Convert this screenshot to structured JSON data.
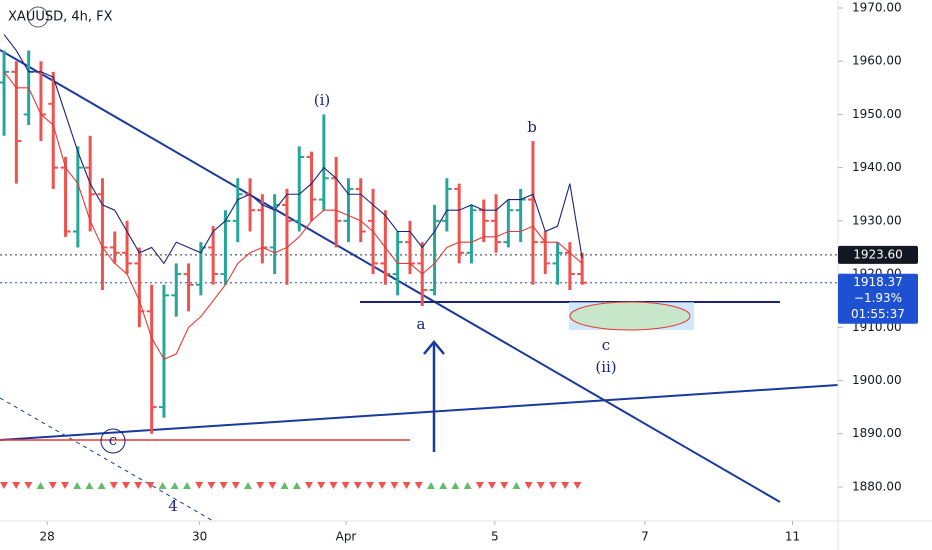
{
  "chart_data": {
    "type": "ohlc",
    "title": "XAUUSD, 4h, FX",
    "up_color": "#26a69a",
    "down_color": "#ef5350",
    "ohlc": [
      [
        1956,
        1962,
        1946,
        1958
      ],
      [
        1958,
        1960,
        1937,
        1945
      ],
      [
        1950,
        1962,
        1948,
        1958
      ],
      [
        1958,
        1960,
        1945,
        1950
      ],
      [
        1952,
        1958,
        1936,
        1940
      ],
      [
        1940,
        1942,
        1927,
        1928
      ],
      [
        1928,
        1944,
        1925,
        1940
      ],
      [
        1940,
        1946,
        1928,
        1935
      ],
      [
        1935,
        1938,
        1917,
        1925
      ],
      [
        1925,
        1928,
        1922,
        1924
      ],
      [
        1924,
        1930,
        1920,
        1922
      ],
      [
        1922,
        1925,
        1910,
        1913
      ],
      [
        1913,
        1918,
        1890,
        1895
      ],
      [
        1895,
        1918,
        1893,
        1916
      ],
      [
        1916,
        1922,
        1912,
        1920
      ],
      [
        1920,
        1922,
        1913,
        1918
      ],
      [
        1918,
        1926,
        1916,
        1925
      ],
      [
        1925,
        1929,
        1918,
        1920
      ],
      [
        1920,
        1932,
        1918,
        1930
      ],
      [
        1930,
        1938,
        1926,
        1935
      ],
      [
        1935,
        1938,
        1928,
        1932
      ],
      [
        1932,
        1935,
        1922,
        1925
      ],
      [
        1925,
        1935,
        1920,
        1933
      ],
      [
        1933,
        1936,
        1918,
        1930
      ],
      [
        1930,
        1944,
        1928,
        1942
      ],
      [
        1942,
        1943,
        1930,
        1934
      ],
      [
        1934,
        1950,
        1932,
        1938
      ],
      [
        1938,
        1942,
        1925,
        1930
      ],
      [
        1930,
        1938,
        1926,
        1936
      ],
      [
        1936,
        1938,
        1926,
        1928
      ],
      [
        1930,
        1936,
        1920,
        1922
      ],
      [
        1922,
        1932,
        1918,
        1920
      ],
      [
        1920,
        1928,
        1916,
        1926
      ],
      [
        1926,
        1930,
        1920,
        1922
      ],
      [
        1922,
        1926,
        1914,
        1917
      ],
      [
        1917,
        1933,
        1916,
        1930
      ],
      [
        1930,
        1938,
        1928,
        1936
      ],
      [
        1936,
        1937,
        1922,
        1924
      ],
      [
        1924,
        1933,
        1922,
        1932
      ],
      [
        1932,
        1934,
        1926,
        1930
      ],
      [
        1930,
        1935,
        1924,
        1926
      ],
      [
        1926,
        1934,
        1925,
        1932
      ],
      [
        1932,
        1936,
        1926,
        1934
      ],
      [
        1934,
        1945,
        1918,
        1926
      ],
      [
        1926,
        1928,
        1920,
        1922
      ],
      [
        1922,
        1926,
        1918,
        1924
      ],
      [
        1924,
        1926,
        1917,
        1920
      ],
      [
        1920,
        1924,
        1918,
        1918.37
      ]
    ],
    "series": [
      {
        "color": "#1a237e",
        "values": [
          1965,
          1962,
          1958,
          1958,
          1957,
          1950,
          1943,
          1937,
          1933,
          1932,
          1928,
          1924,
          1925,
          1922,
          1926,
          1925,
          1924,
          1928,
          1930,
          1934,
          1935,
          1933,
          1932,
          1935,
          1935,
          1937,
          1940,
          1938,
          1935,
          1935,
          1933,
          1931,
          1928,
          1928,
          1925,
          1928,
          1932,
          1932,
          1933,
          1932,
          1932,
          1934,
          1934,
          1935,
          1928,
          1929,
          1937,
          1923
        ]
      },
      {
        "color": "#e53935",
        "values": [
          1958,
          1955,
          1955,
          1950,
          1948,
          1940,
          1937,
          1930,
          1925,
          1922,
          1920,
          1915,
          1908,
          1904,
          1905,
          1910,
          1912,
          1915,
          1918,
          1922,
          1924,
          1925,
          1924,
          1925,
          1927,
          1930,
          1932,
          1932,
          1931,
          1930,
          1928,
          1925,
          1922,
          1922,
          1920,
          1922,
          1925,
          1926,
          1926,
          1927,
          1927,
          1928,
          1928,
          1929,
          1926,
          1926,
          1924,
          1922
        ]
      }
    ],
    "xlim": [
      -0.33,
      67.8
    ],
    "xticks": [
      {
        "value": 3.5,
        "label": "28"
      },
      {
        "value": 15.9,
        "label": "30"
      },
      {
        "value": 27.8,
        "label": "Apr"
      },
      {
        "value": 39.9,
        "label": "5"
      },
      {
        "value": 52.1,
        "label": "7"
      },
      {
        "value": 64.1,
        "label": "11"
      }
    ],
    "ylim": [
      1873.6,
      1971.5
    ],
    "yticks": [
      {
        "value": 1880,
        "label": "1880.00"
      },
      {
        "value": 1890,
        "label": "1890.00"
      },
      {
        "value": 1900,
        "label": "1900.00"
      },
      {
        "value": 1910,
        "label": "1910.00"
      },
      {
        "value": 1920,
        "label": "1920.00"
      },
      {
        "value": 1930,
        "label": "1930.00"
      },
      {
        "value": 1940,
        "label": "1940.00"
      },
      {
        "value": 1950,
        "label": "1950.00"
      },
      {
        "value": 1960,
        "label": "1960.00"
      },
      {
        "value": 1970,
        "label": "1970.00"
      }
    ],
    "price_lines": [
      {
        "value": 1923.6,
        "label": "1923.60"
      },
      {
        "value": 1918.37,
        "label": "1918.37",
        "change": "−1.93%",
        "countdown": "01:55:37"
      }
    ],
    "annotations": [
      "(i)",
      "b",
      "a",
      "c",
      "(ii)",
      "c",
      "4"
    ]
  }
}
